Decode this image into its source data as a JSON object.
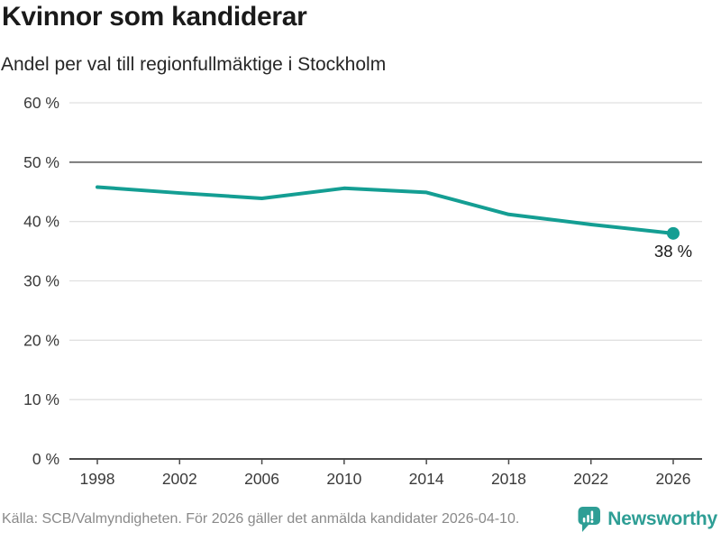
{
  "header": {
    "title": "Kvinnor som kandiderar",
    "subtitle": "Andel per val till regionfullmäktige i Stockholm"
  },
  "footer": {
    "source": "Källa: SCB/Valmyndigheten. För 2026 gäller det anmälda kandidater 2026-04-10.",
    "brand": "Newsworthy",
    "logo_icon": "bar-chart-speech-bubble-icon"
  },
  "colors": {
    "line": "#149E93",
    "brand": "#2E9E95",
    "grid": "#E0E0E0",
    "grid_emphasis": "#7A7A7A",
    "axis": "#4A4A4A",
    "tick_label": "#3A3A3A",
    "text_dark": "#1A1A1A",
    "text_muted": "#8A8A8A"
  },
  "chart_data": {
    "type": "line",
    "title": "Kvinnor som kandiderar",
    "subtitle": "Andel per val till regionfullmäktige i Stockholm",
    "x": [
      1998,
      2002,
      2006,
      2010,
      2014,
      2018,
      2022,
      2026
    ],
    "values": [
      45.8,
      44.8,
      43.9,
      45.6,
      44.9,
      41.2,
      39.5,
      38
    ],
    "x_tick_labels": [
      "1998",
      "2002",
      "2006",
      "2010",
      "2014",
      "2018",
      "2022",
      "2026"
    ],
    "y_ticks": [
      0,
      10,
      20,
      30,
      40,
      50,
      60
    ],
    "y_tick_suffix": " %",
    "ylim": [
      0,
      60
    ],
    "xlabel": "",
    "ylabel": "",
    "grid": true,
    "emphasized_gridline": 50,
    "legend": "none",
    "marker_last_point": true,
    "end_label": "38 %"
  }
}
